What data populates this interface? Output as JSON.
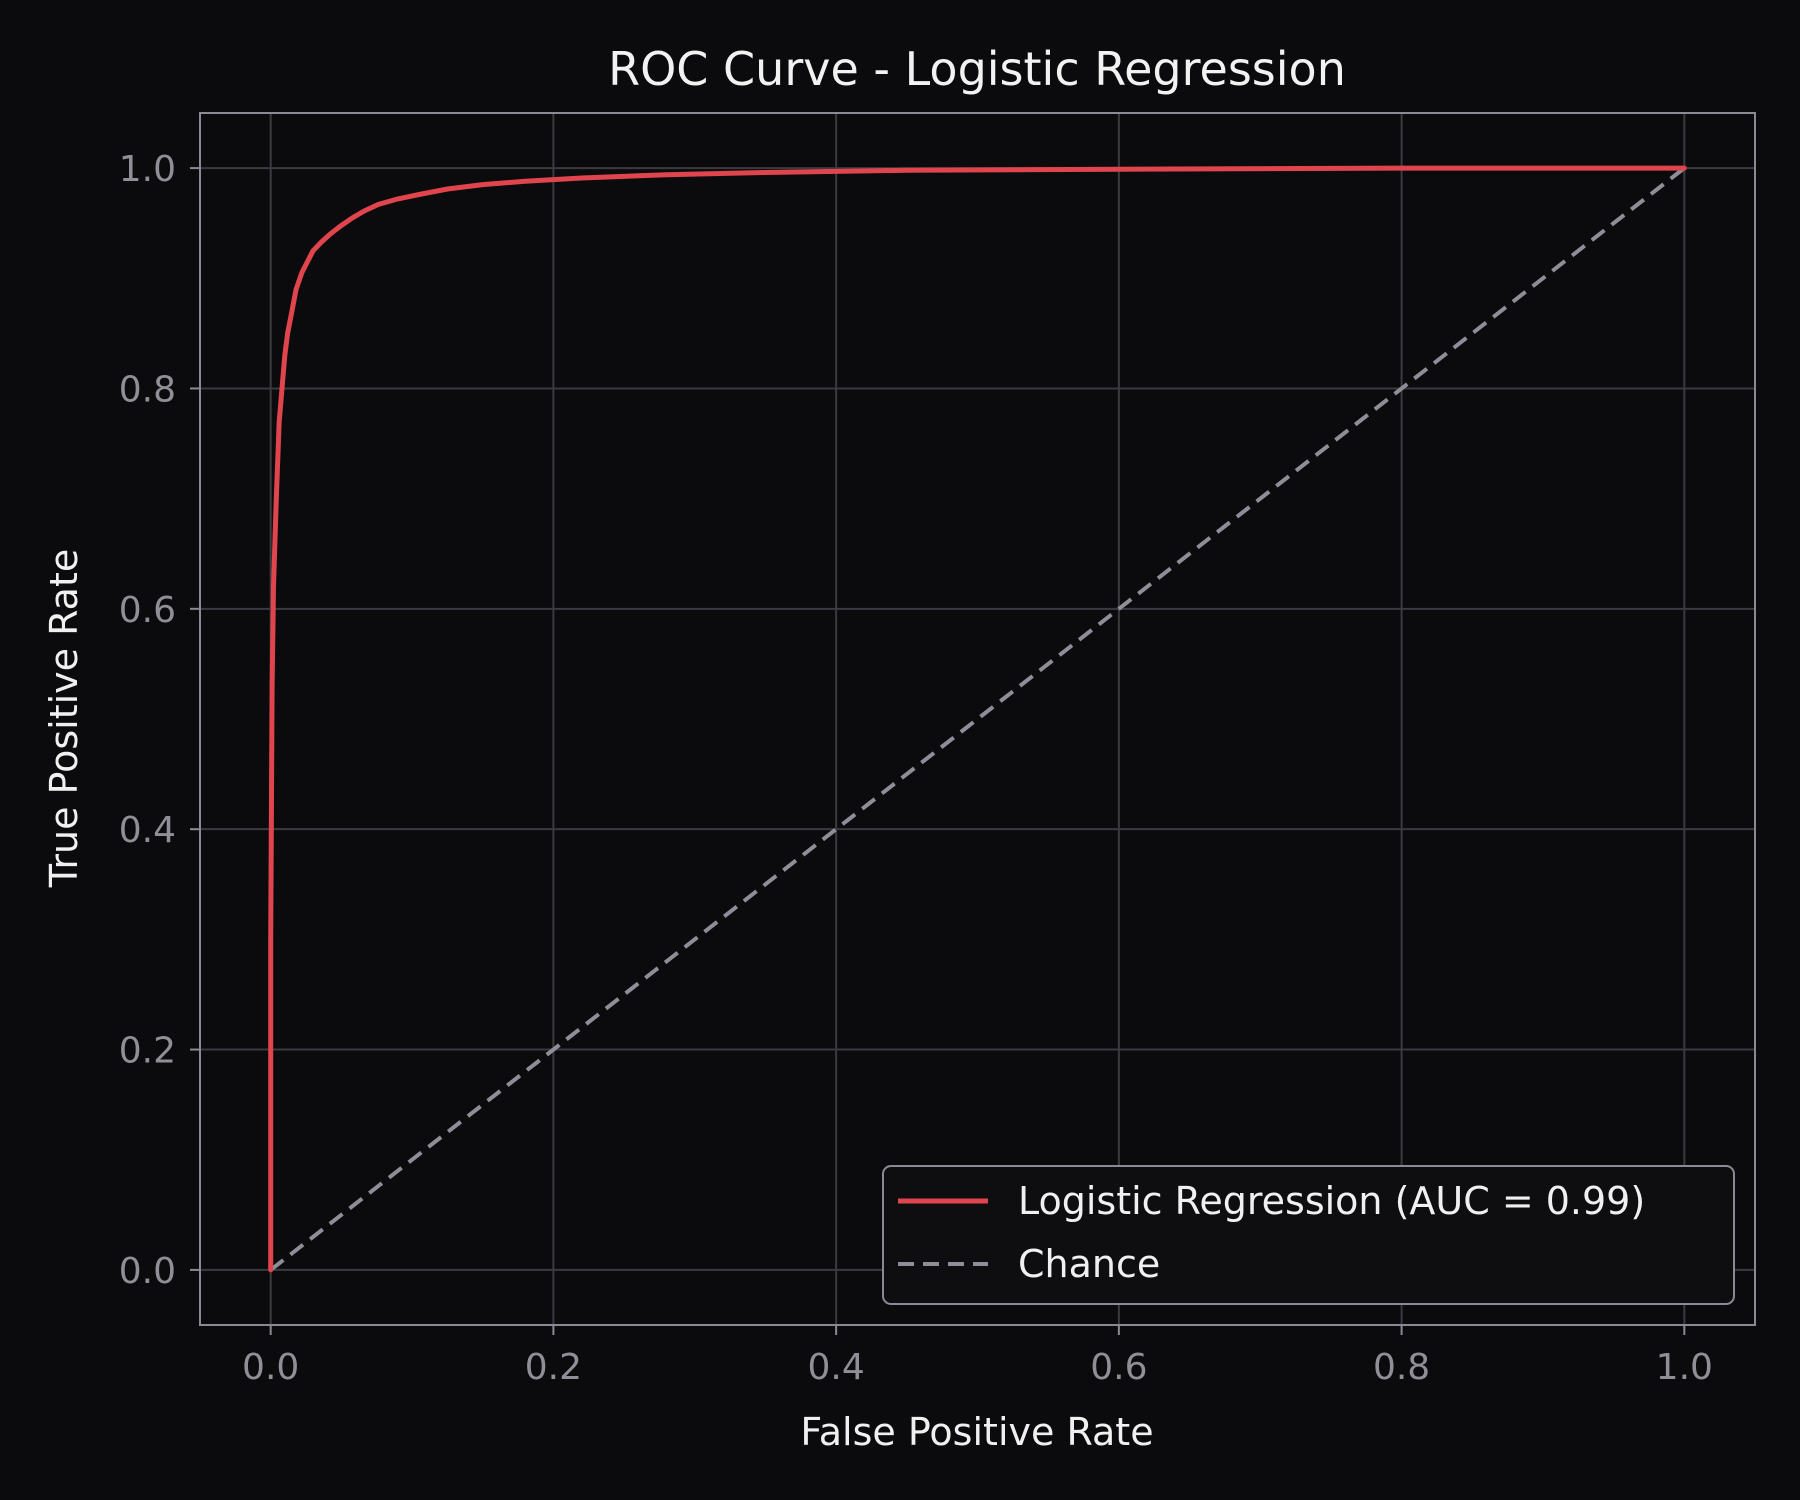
{
  "chart_data": {
    "type": "line",
    "title": "ROC Curve - Logistic Regression",
    "xlabel": "False Positive Rate",
    "ylabel": "True Positive Rate",
    "xlim": [
      -0.05,
      1.05
    ],
    "ylim": [
      -0.05,
      1.05
    ],
    "xticks": [
      "0.0",
      "0.2",
      "0.4",
      "0.6",
      "0.8",
      "1.0"
    ],
    "yticks": [
      "0.0",
      "0.2",
      "0.4",
      "0.6",
      "0.8",
      "1.0"
    ],
    "xtick_values": [
      0.0,
      0.2,
      0.4,
      0.6,
      0.8,
      1.0
    ],
    "ytick_values": [
      0.0,
      0.2,
      0.4,
      0.6,
      0.8,
      1.0
    ],
    "grid": true,
    "legend_position": "lower-right",
    "series": [
      {
        "name": "Logistic Regression (AUC =  0.99)",
        "color": "#e0454d",
        "style": "solid",
        "x": [
          0.0,
          0.0,
          0.001,
          0.002,
          0.004,
          0.006,
          0.008,
          0.01,
          0.012,
          0.015,
          0.018,
          0.022,
          0.026,
          0.03,
          0.036,
          0.042,
          0.05,
          0.058,
          0.066,
          0.076,
          0.09,
          0.105,
          0.125,
          0.15,
          0.18,
          0.22,
          0.28,
          0.35,
          0.45,
          0.6,
          0.8,
          1.0
        ],
        "y": [
          0.0,
          0.3,
          0.53,
          0.62,
          0.7,
          0.77,
          0.8,
          0.83,
          0.85,
          0.87,
          0.89,
          0.905,
          0.915,
          0.925,
          0.933,
          0.94,
          0.948,
          0.955,
          0.961,
          0.967,
          0.972,
          0.976,
          0.981,
          0.985,
          0.988,
          0.991,
          0.994,
          0.996,
          0.998,
          0.999,
          1.0,
          1.0
        ]
      },
      {
        "name": "Chance",
        "color": "#8e8e99",
        "style": "dashed",
        "x": [
          0.0,
          1.0
        ],
        "y": [
          0.0,
          1.0
        ]
      }
    ]
  },
  "colors": {
    "background": "#0b0b0d",
    "axes_edge": "#8a8a95",
    "grid": "#3a3a40",
    "roc_line": "#e0454d",
    "chance_line": "#8e8e99",
    "legend_edge": "#8a8a95",
    "legend_bg": "#0e0e11"
  }
}
